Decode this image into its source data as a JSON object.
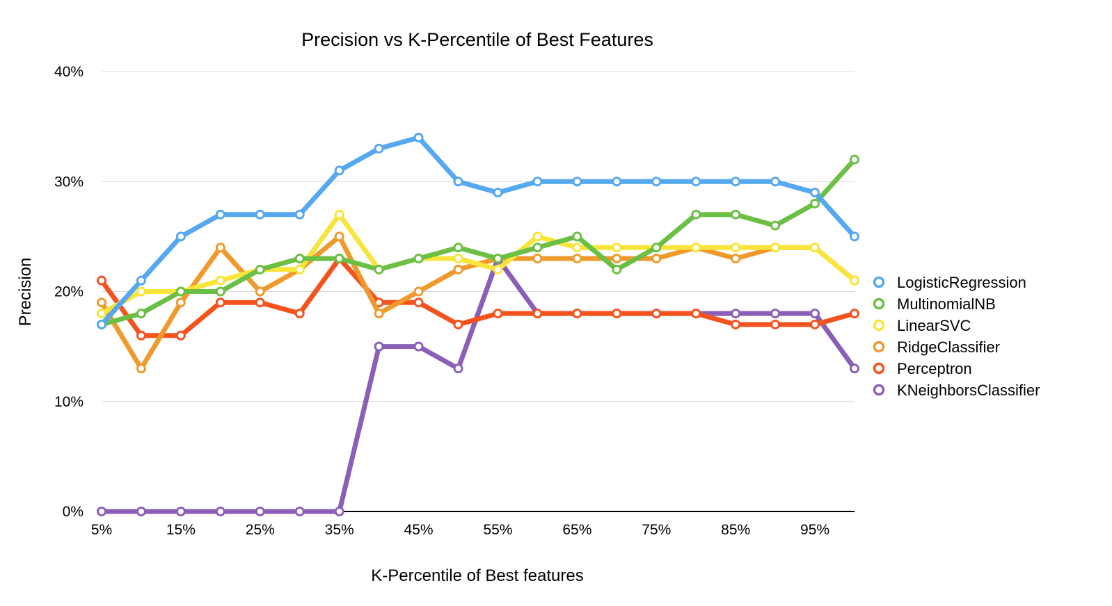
{
  "chart_data": {
    "type": "line",
    "title": "Precision vs K-Percentile of Best Features",
    "xlabel": "K-Percentile of Best features",
    "ylabel": "Precision",
    "x": [
      "5%",
      "10%",
      "15%",
      "20%",
      "25%",
      "30%",
      "35%",
      "40%",
      "45%",
      "50%",
      "55%",
      "60%",
      "65%",
      "70%",
      "75%",
      "80%",
      "85%",
      "90%",
      "95%",
      "100%"
    ],
    "x_tick_labels": [
      "5%",
      "15%",
      "25%",
      "35%",
      "45%",
      "55%",
      "65%",
      "75%",
      "85%",
      "95%"
    ],
    "y_ticks": [
      0,
      10,
      20,
      30,
      40
    ],
    "y_tick_labels": [
      "0%",
      "10%",
      "20%",
      "30%",
      "40%"
    ],
    "ylim": [
      0,
      40
    ],
    "grid": true,
    "legend_position": "right",
    "series": [
      {
        "name": "LogisticRegression",
        "color": "#56a8f0",
        "values": [
          17,
          21,
          25,
          27,
          27,
          27,
          31,
          33,
          34,
          30,
          29,
          30,
          30,
          30,
          30,
          30,
          30,
          30,
          29,
          25
        ]
      },
      {
        "name": "MultinomialNB",
        "color": "#6cbf45",
        "values": [
          17,
          18,
          20,
          20,
          22,
          23,
          23,
          22,
          23,
          24,
          23,
          24,
          25,
          22,
          24,
          27,
          27,
          26,
          28,
          32
        ]
      },
      {
        "name": "LinearSVC",
        "color": "#f9e53a",
        "values": [
          18,
          20,
          20,
          21,
          22,
          22,
          27,
          22,
          23,
          23,
          22,
          25,
          24,
          24,
          24,
          24,
          24,
          24,
          24,
          21
        ]
      },
      {
        "name": "RidgeClassifier",
        "color": "#ef9a2d",
        "values": [
          19,
          13,
          19,
          24,
          20,
          22,
          25,
          18,
          20,
          22,
          23,
          23,
          23,
          23,
          23,
          24,
          23,
          24,
          24,
          21
        ]
      },
      {
        "name": "Perceptron",
        "color": "#f4531e",
        "values": [
          21,
          16,
          16,
          19,
          19,
          18,
          23,
          19,
          19,
          17,
          18,
          18,
          18,
          18,
          18,
          18,
          17,
          17,
          17,
          18
        ]
      },
      {
        "name": "KNeighborsClassifier",
        "color": "#8b5fb8",
        "values": [
          0,
          0,
          0,
          0,
          0,
          0,
          0,
          15,
          15,
          13,
          23,
          18,
          18,
          18,
          18,
          18,
          18,
          18,
          18,
          13
        ]
      }
    ]
  }
}
